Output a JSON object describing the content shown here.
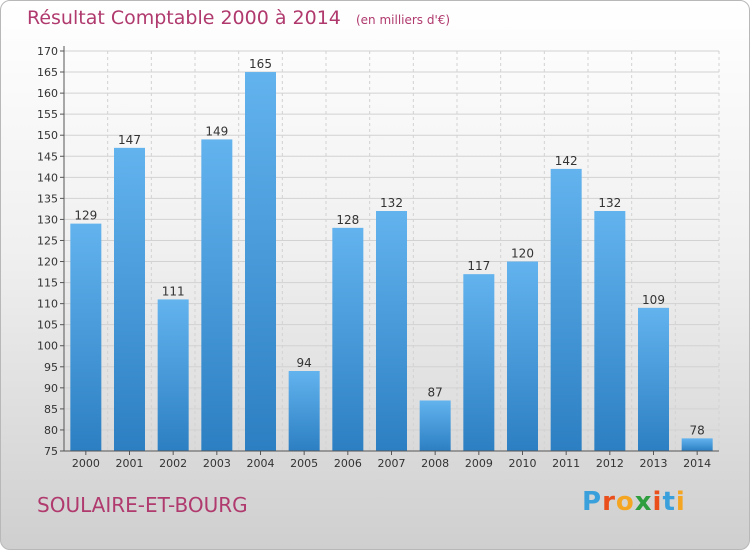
{
  "header": {
    "title": "Résultat Comptable 2000 à 2014",
    "unit": "(en milliers d'€)"
  },
  "footer": {
    "town": "SOULAIRE-ET-BOURG",
    "logo_letters": [
      "P",
      "r",
      "o",
      "x",
      "i",
      "t",
      "i"
    ],
    "logo_colors": [
      "#3aa0dc",
      "#e94e1b",
      "#f4a623",
      "#2e9e3e",
      "#e94e1b",
      "#3aa0dc",
      "#f4a623"
    ]
  },
  "colors": {
    "bar_top": "#62b3ee",
    "bar_bottom": "#2c7fc2",
    "grid": "#d2d2d2",
    "axis": "#555555",
    "label": "#333333",
    "accent": "#b03a6e"
  },
  "chart_data": {
    "type": "bar",
    "categories": [
      "2000",
      "2001",
      "2002",
      "2003",
      "2004",
      "2005",
      "2006",
      "2007",
      "2008",
      "2009",
      "2010",
      "2011",
      "2012",
      "2013",
      "2014"
    ],
    "values": [
      129,
      147,
      111,
      149,
      165,
      94,
      128,
      132,
      87,
      117,
      120,
      142,
      132,
      109,
      78
    ],
    "ylim": [
      75,
      170
    ],
    "ytick_step": 5,
    "grid": true,
    "data_labels": true
  }
}
